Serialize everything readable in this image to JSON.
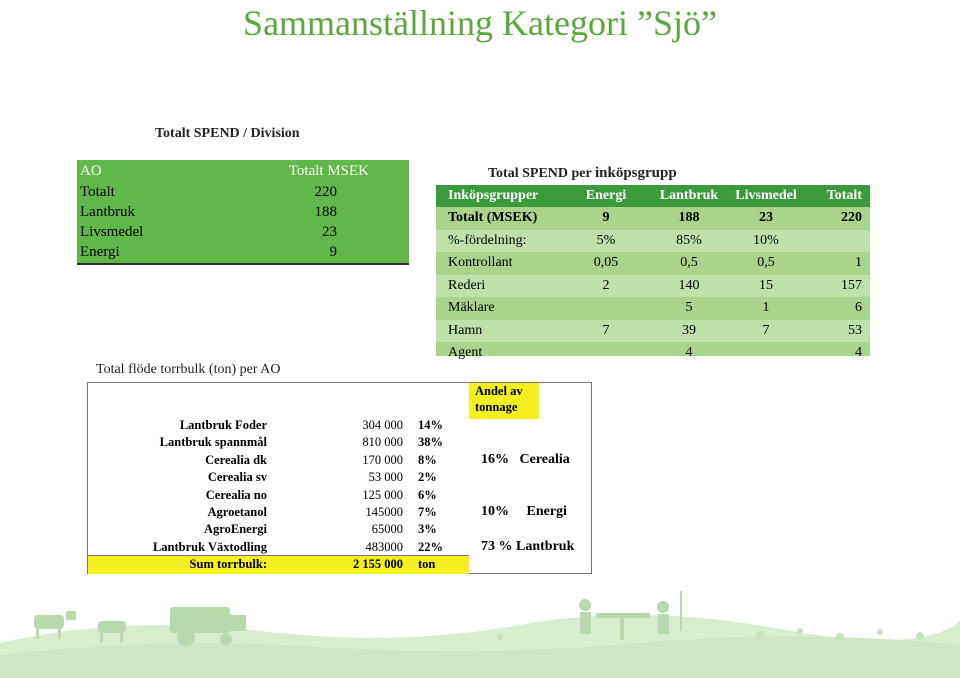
{
  "title": "Sammanställning Kategori ”Sjö”",
  "spend_division": {
    "title": "Totalt SPEND / Division",
    "header": {
      "label": "AO",
      "value": "Totalt MSEK"
    },
    "rows": [
      {
        "label": "Totalt",
        "value": "220"
      },
      {
        "label": "Lantbruk",
        "value": "188"
      },
      {
        "label": "Livsmedel",
        "value": "23"
      },
      {
        "label": "Energi",
        "value": "9"
      }
    ]
  },
  "spend_group": {
    "title_a": "Total SPEND per ",
    "title_b": "inköpsgrupp",
    "headers": [
      "Inköpsgrupper",
      "Energi",
      "Lantbruk",
      "Livsmedel",
      "Totalt"
    ],
    "rows": [
      [
        "Totalt (MSEK)",
        "9",
        "188",
        "23",
        "220"
      ],
      [
        "%-fördelning:",
        "5%",
        "85%",
        "10%",
        ""
      ],
      [
        "Kontrollant",
        "0,05",
        "0,5",
        "0,5",
        "1"
      ],
      [
        "Rederi",
        "2",
        "140",
        "15",
        "157"
      ],
      [
        "Mäklare",
        "",
        "5",
        "1",
        "6"
      ],
      [
        "Hamn",
        "7",
        "39",
        "7",
        "53"
      ],
      [
        "Agent",
        "",
        "4",
        "",
        "4"
      ]
    ]
  },
  "flode": {
    "title": "Total flöde torrbulk (ton) per AO",
    "rows": [
      {
        "name": "Lantbruk Foder",
        "value": "304 000",
        "pct": "14%"
      },
      {
        "name": "Lantbruk spannmål",
        "value": "810 000",
        "pct": "38%"
      },
      {
        "name": "Cerealia dk",
        "value": "170 000",
        "pct": "8%"
      },
      {
        "name": "Cerealia sv",
        "value": "53 000",
        "pct": "2%"
      },
      {
        "name": "Cerealia no",
        "value": "125 000",
        "pct": "6%"
      },
      {
        "name": "Agroetanol",
        "value": "145000",
        "pct": "7%"
      },
      {
        "name": "AgroEnergi",
        "value": "65000",
        "pct": "3%"
      },
      {
        "name": "Lantbruk Växtodling",
        "value": "483000",
        "pct": "22%"
      }
    ],
    "sum": {
      "name": "Sum torrbulk:",
      "value": "2 155 000",
      "unit": "ton"
    }
  },
  "andel": {
    "header_line1": "Andel av",
    "header_line2": "tonnage",
    "lines": [
      "16%   Cerealia",
      "10%     Energi",
      "73 % Lantbruk"
    ]
  }
}
